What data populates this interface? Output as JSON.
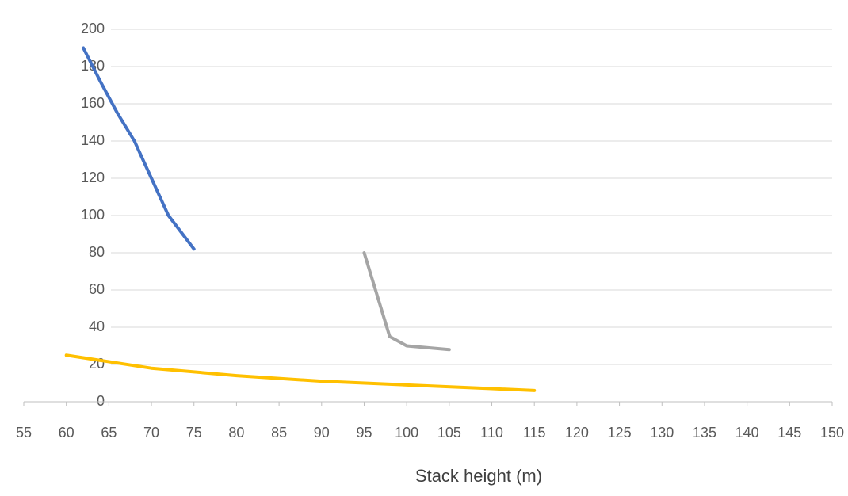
{
  "chart_data": {
    "type": "line",
    "x_label": "Stack height (m)",
    "series": [
      {
        "color": "#4472c4",
        "x": [
          62,
          64,
          66,
          68,
          70,
          72,
          75
        ],
        "values": [
          190,
          172,
          155,
          140,
          120,
          100,
          82
        ]
      },
      {
        "color": "#a5a5a5",
        "x": [
          95,
          96,
          97,
          98,
          100,
          105
        ],
        "values": [
          80,
          65,
          50,
          35,
          30,
          28
        ]
      },
      {
        "color": "#ffc000",
        "x": [
          60,
          70,
          80,
          90,
          100,
          110,
          115
        ],
        "values": [
          25,
          18,
          14,
          11,
          9,
          7,
          6
        ]
      }
    ],
    "xlim": [
      55,
      150
    ],
    "xticks": [
      55,
      60,
      65,
      70,
      75,
      80,
      85,
      90,
      95,
      100,
      105,
      110,
      115,
      120,
      125,
      130,
      135,
      140,
      145,
      150
    ],
    "ylim": [
      0,
      200
    ],
    "yticks": [
      0,
      20,
      40,
      60,
      80,
      100,
      120,
      140,
      160,
      180,
      200
    ],
    "grid": true
  }
}
